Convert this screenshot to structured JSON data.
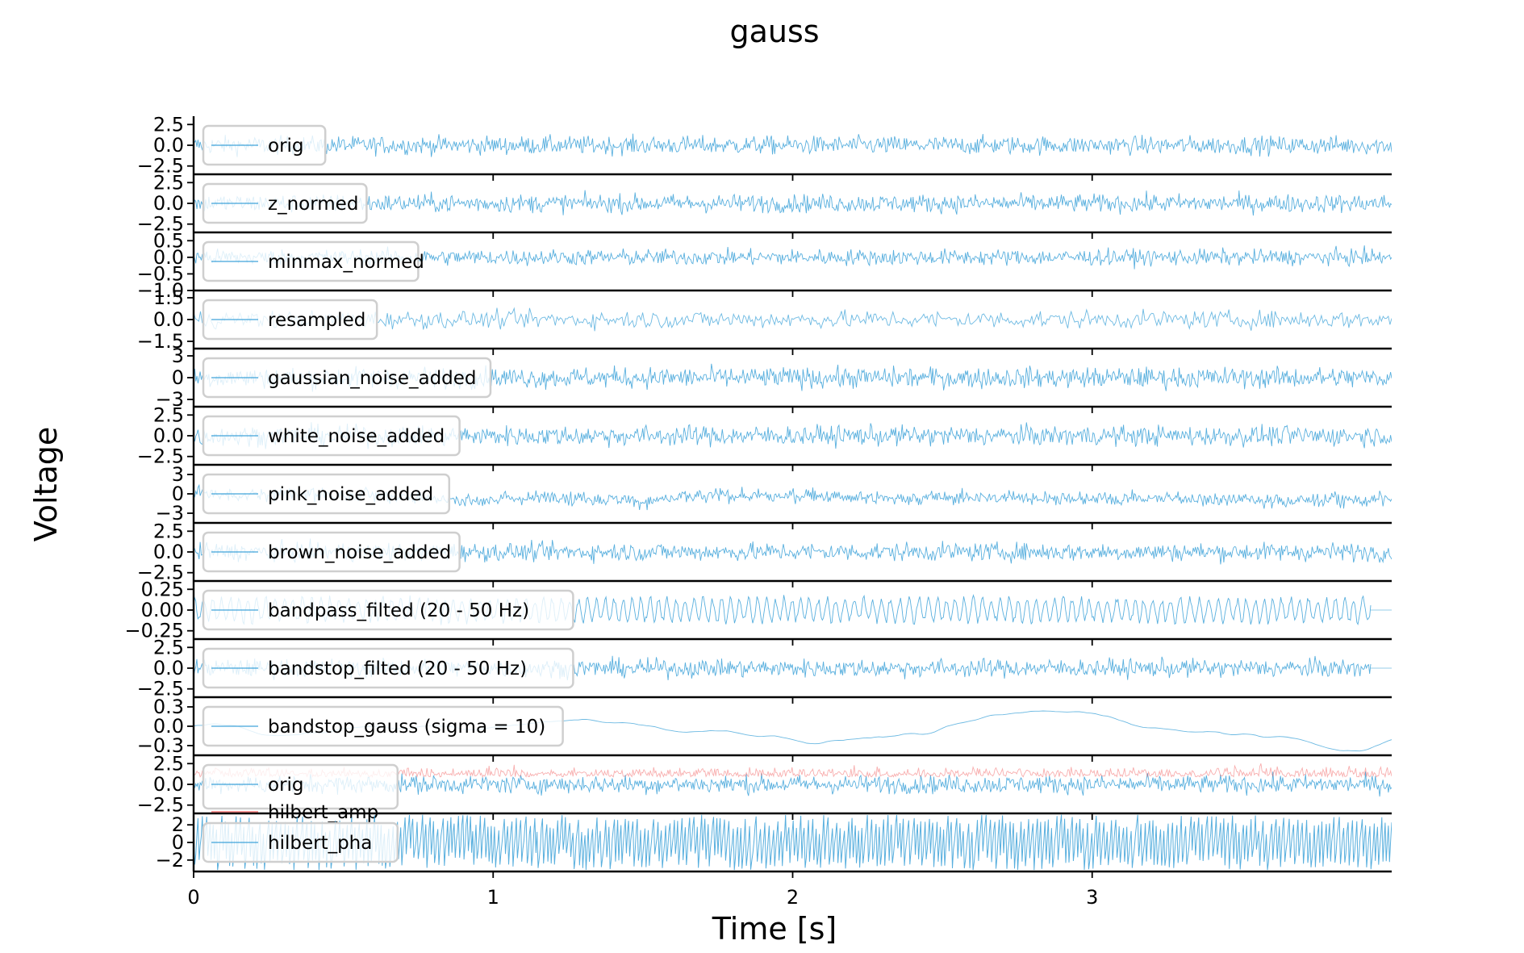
{
  "figure": {
    "title": "gauss",
    "xlabel": "Time [s]",
    "ylabel": "Voltage"
  },
  "colors": {
    "signal": "#2e9bd6",
    "hilbert_amp": "#ef4c4c",
    "axis": "#000000",
    "legend_border": "#cfcfcf"
  },
  "chart_data": {
    "type": "line",
    "title": "gauss",
    "xlabel": "Time [s]",
    "ylabel": "Voltage",
    "xlim": [
      0,
      4.0
    ],
    "x_ticks": [
      0,
      1,
      2,
      3
    ],
    "x_tick_labels": [
      "0",
      "1",
      "2",
      "3"
    ],
    "grid": false,
    "legend_placement": "left",
    "panels": [
      {
        "legend": [
          "orig"
        ],
        "ylim": [
          -3.5,
          3.5
        ],
        "y_ticks": [
          2.5,
          0.0,
          -2.5
        ],
        "y_tick_labels": [
          "2.5",
          "0.0",
          "−2.5"
        ],
        "series": [
          {
            "name": "orig",
            "style": "noise",
            "amplitude": 1.0,
            "x_end": 4.0
          }
        ]
      },
      {
        "legend": [
          "z_normed"
        ],
        "ylim": [
          -3.5,
          3.5
        ],
        "y_ticks": [
          2.5,
          0.0,
          -2.5
        ],
        "y_tick_labels": [
          "2.5",
          "0.0",
          "−2.5"
        ],
        "series": [
          {
            "name": "z_normed",
            "style": "noise",
            "amplitude": 1.0,
            "x_end": 4.0
          }
        ]
      },
      {
        "legend": [
          "minmax_normed"
        ],
        "ylim": [
          -1.0,
          0.75
        ],
        "y_ticks": [
          0.5,
          0.0,
          -0.5,
          -1.0
        ],
        "y_tick_labels": [
          "0.5",
          "0.0",
          "−0.5",
          "−1.0"
        ],
        "series": [
          {
            "name": "minmax_normed",
            "style": "noise",
            "amplitude": 0.22,
            "x_end": 4.0
          }
        ]
      },
      {
        "legend": [
          "resampled"
        ],
        "ylim": [
          -2.0,
          2.0
        ],
        "y_ticks": [
          1.5,
          0.0,
          -1.5
        ],
        "y_tick_labels": [
          "1.5",
          "0.0",
          "−1.5"
        ],
        "series": [
          {
            "name": "resampled",
            "style": "noise-thin",
            "amplitude": 0.55,
            "x_end": 4.0
          }
        ]
      },
      {
        "legend": [
          "gaussian_noise_added"
        ],
        "ylim": [
          -4.0,
          4.0
        ],
        "y_ticks": [
          3,
          0,
          -3
        ],
        "y_tick_labels": [
          "3",
          "0",
          "−3"
        ],
        "series": [
          {
            "name": "gaussian_noise_added",
            "style": "noise",
            "amplitude": 1.3,
            "x_end": 4.0
          }
        ]
      },
      {
        "legend": [
          "white_noise_added"
        ],
        "ylim": [
          -3.5,
          3.5
        ],
        "y_ticks": [
          2.5,
          0.0,
          -2.5
        ],
        "y_tick_labels": [
          "2.5",
          "0.0",
          "−2.5"
        ],
        "series": [
          {
            "name": "white_noise_added",
            "style": "noise",
            "amplitude": 1.1,
            "x_end": 4.0
          }
        ]
      },
      {
        "legend": [
          "pink_noise_added"
        ],
        "ylim": [
          -4.5,
          4.5
        ],
        "y_ticks": [
          3,
          0,
          -3
        ],
        "y_tick_labels": [
          "3",
          "0",
          "−3"
        ],
        "series": [
          {
            "name": "pink_noise_added",
            "style": "pink",
            "amplitude": 1.2,
            "x_end": 4.0
          }
        ]
      },
      {
        "legend": [
          "brown_noise_added"
        ],
        "ylim": [
          -3.5,
          3.5
        ],
        "y_ticks": [
          2.5,
          0.0,
          -2.5
        ],
        "y_tick_labels": [
          "2.5",
          "0.0",
          "−2.5"
        ],
        "series": [
          {
            "name": "brown_noise_added",
            "style": "noise",
            "amplitude": 1.0,
            "x_end": 4.0
          }
        ]
      },
      {
        "legend": [
          "bandpass_filted (20 - 50 Hz)"
        ],
        "ylim": [
          -0.35,
          0.35
        ],
        "y_ticks": [
          0.25,
          0.0,
          -0.25
        ],
        "y_tick_labels": [
          "0.25",
          "0.00",
          "−0.25"
        ],
        "series": [
          {
            "name": "bandpass_filted (20 - 50 Hz)",
            "style": "band",
            "amplitude": 0.13,
            "x_end": 3.93
          }
        ]
      },
      {
        "legend": [
          "bandstop_filted (20 - 50 Hz)"
        ],
        "ylim": [
          -3.5,
          3.5
        ],
        "y_ticks": [
          2.5,
          0.0,
          -2.5
        ],
        "y_tick_labels": [
          "2.5",
          "0.0",
          "−2.5"
        ],
        "series": [
          {
            "name": "bandstop_filted (20 - 50 Hz)",
            "style": "noise",
            "amplitude": 1.0,
            "x_end": 3.93
          }
        ]
      },
      {
        "legend": [
          "bandstop_gauss (sigma = 10)"
        ],
        "ylim": [
          -0.45,
          0.45
        ],
        "y_ticks": [
          0.3,
          0.0,
          -0.3
        ],
        "y_tick_labels": [
          "0.3",
          "0.0",
          "−0.3"
        ],
        "series": [
          {
            "name": "bandstop_gauss (sigma = 10)",
            "style": "smooth",
            "amplitude": 0.16,
            "x_end": 4.0
          }
        ]
      },
      {
        "legend": [
          "orig",
          "hilbert_amp"
        ],
        "ylim": [
          -3.5,
          3.5
        ],
        "y_ticks": [
          2.5,
          0.0,
          -2.5
        ],
        "y_tick_labels": [
          "2.5",
          "0.0",
          "−2.5"
        ],
        "series": [
          {
            "name": "orig",
            "style": "noise",
            "amplitude": 1.0,
            "x_end": 4.0
          },
          {
            "name": "hilbert_amp",
            "style": "amp",
            "amplitude": 1.2,
            "x_end": 4.0
          }
        ]
      },
      {
        "legend": [
          "hilbert_pha"
        ],
        "ylim": [
          -3.3,
          3.3
        ],
        "y_ticks": [
          2,
          0,
          -2
        ],
        "y_tick_labels": [
          "2",
          "0",
          "−2"
        ],
        "series": [
          {
            "name": "hilbert_pha",
            "style": "phase",
            "amplitude": 3.14,
            "x_end": 4.0
          }
        ]
      }
    ]
  }
}
